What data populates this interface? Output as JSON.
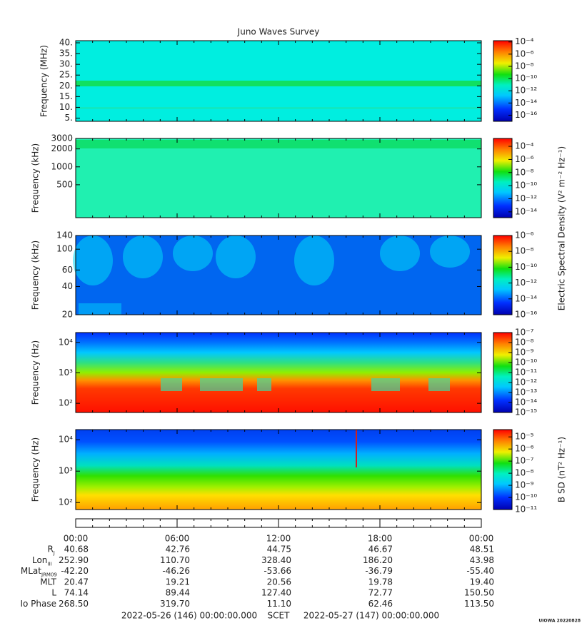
{
  "title": "Juno Waves Survey",
  "panels": [
    {
      "ylabel": "Frequency (MHz)",
      "yscale": "linear",
      "ylim": [
        3.5,
        41
      ],
      "yticks": [
        {
          "value": 40,
          "label": "40."
        },
        {
          "value": 35,
          "label": "35."
        },
        {
          "value": 30,
          "label": "30."
        },
        {
          "value": 25,
          "label": "25."
        },
        {
          "value": 20,
          "label": "20."
        },
        {
          "value": 15,
          "label": "15."
        },
        {
          "value": 10,
          "label": "10."
        },
        {
          "value": 5,
          "label": "5."
        }
      ],
      "zlim": [
        1e-17,
        0.00016
      ],
      "zticks": [
        {
          "value": 0.0001,
          "label": "10⁻⁴"
        },
        {
          "value": 1e-06,
          "label": "10⁻⁶"
        },
        {
          "value": 1e-08,
          "label": "10⁻⁸"
        },
        {
          "value": 1e-10,
          "label": "10⁻¹⁰"
        },
        {
          "value": 1e-12,
          "label": "10⁻¹²"
        },
        {
          "value": 1e-14,
          "label": "10⁻¹⁴"
        },
        {
          "value": 1e-16,
          "label": "10⁻¹⁶"
        }
      ]
    },
    {
      "ylabel": "Frequency (kHz)",
      "yscale": "log",
      "ylim": [
        140,
        3000
      ],
      "yticks": [
        3000,
        2000,
        1000,
        500
      ],
      "zlim": [
        1.3e-15,
        0.0016
      ],
      "zticks": [
        {
          "value": 0.0001,
          "label": "10⁻⁴"
        },
        {
          "value": 1e-06,
          "label": "10⁻⁶"
        },
        {
          "value": 1e-08,
          "label": "10⁻⁸"
        },
        {
          "value": 1e-10,
          "label": "10⁻¹⁰"
        },
        {
          "value": 1e-12,
          "label": "10⁻¹²"
        },
        {
          "value": 1e-14,
          "label": "10⁻¹⁴"
        }
      ]
    },
    {
      "ylabel": "Frequency (kHz)",
      "yscale": "log",
      "ylim": [
        20,
        140
      ],
      "yticks": [
        140,
        100,
        60,
        40,
        20
      ],
      "zlim": [
        1e-16,
        1e-06
      ],
      "zticks": [
        {
          "value": 1e-06,
          "label": "10⁻⁶"
        },
        {
          "value": 1e-08,
          "label": "10⁻⁸"
        },
        {
          "value": 1e-10,
          "label": "10⁻¹⁰"
        },
        {
          "value": 1e-12,
          "label": "10⁻¹²"
        },
        {
          "value": 1e-14,
          "label": "10⁻¹⁴"
        },
        {
          "value": 1e-16,
          "label": "10⁻¹⁶"
        }
      ]
    },
    {
      "ylabel": "Frequency (Hz)",
      "yscale": "log",
      "ylim": [
        50,
        21000
      ],
      "yticks": [
        {
          "value": 10000,
          "label": "10⁴"
        },
        {
          "value": 1000,
          "label": "10³"
        },
        {
          "value": 100,
          "label": "10²"
        }
      ],
      "zlim": [
        1e-15,
        1e-07
      ],
      "zticks": [
        {
          "value": 1e-07,
          "label": "10⁻⁷"
        },
        {
          "value": 1e-08,
          "label": "10⁻⁸"
        },
        {
          "value": 1e-09,
          "label": "10⁻⁹"
        },
        {
          "value": 1e-10,
          "label": "10⁻¹⁰"
        },
        {
          "value": 1e-11,
          "label": "10⁻¹¹"
        },
        {
          "value": 1e-12,
          "label": "10⁻¹²"
        },
        {
          "value": 1e-13,
          "label": "10⁻¹³"
        },
        {
          "value": 1e-14,
          "label": "10⁻¹⁴"
        },
        {
          "value": 1e-15,
          "label": "10⁻¹⁵"
        }
      ]
    },
    {
      "ylabel": "Frequency (Hz)",
      "yscale": "log",
      "ylim": [
        60,
        21000
      ],
      "yticks": [
        {
          "value": 10000,
          "label": "10⁴"
        },
        {
          "value": 1000,
          "label": "10³"
        },
        {
          "value": 100,
          "label": "10²"
        }
      ],
      "zlim": [
        1e-11,
        4e-05
      ],
      "zticks": [
        {
          "value": 1e-05,
          "label": "10⁻⁵"
        },
        {
          "value": 1e-06,
          "label": "10⁻⁶"
        },
        {
          "value": 1e-07,
          "label": "10⁻⁷"
        },
        {
          "value": 1e-08,
          "label": "10⁻⁸"
        },
        {
          "value": 1e-09,
          "label": "10⁻⁹"
        },
        {
          "value": 1e-10,
          "label": "10⁻¹⁰"
        },
        {
          "value": 1e-11,
          "label": "10⁻¹¹"
        }
      ]
    }
  ],
  "colorbar_labels": [
    "Electric Spectral Density (V² m⁻² Hz⁻¹)",
    "B SD (nT² Hz⁻¹)"
  ],
  "time_ticks": [
    "00:00",
    "06:00",
    "12:00",
    "18:00",
    "00:00"
  ],
  "ephemeris": [
    {
      "label": "R",
      "sub": "J",
      "values": [
        "40.68",
        "42.76",
        "44.75",
        "46.67",
        "48.51"
      ]
    },
    {
      "label": "Lon",
      "sub": "III",
      "values": [
        "252.90",
        "110.70",
        "328.40",
        "186.20",
        "43.98"
      ]
    },
    {
      "label": "MLat",
      "sub": "JRM09",
      "values": [
        "-42.20",
        "-46.26",
        "-53.66",
        "-36.79",
        "-55.40"
      ]
    },
    {
      "label": "MLT",
      "values": [
        "20.47",
        "19.21",
        "20.56",
        "19.78",
        "19.40"
      ]
    },
    {
      "label": "L",
      "values": [
        "74.14",
        "89.44",
        "127.40",
        "72.77",
        "150.50"
      ]
    },
    {
      "label": "Io Phase",
      "values": [
        "268.50",
        "319.70",
        "11.10",
        "62.46",
        "113.50"
      ]
    }
  ],
  "footer": {
    "start": "2022-05-26 (146) 00:00:00.000",
    "scet": "SCET",
    "end": "2022-05-27 (147) 00:00:00.000"
  },
  "credit": "UIOWA 20220828"
}
